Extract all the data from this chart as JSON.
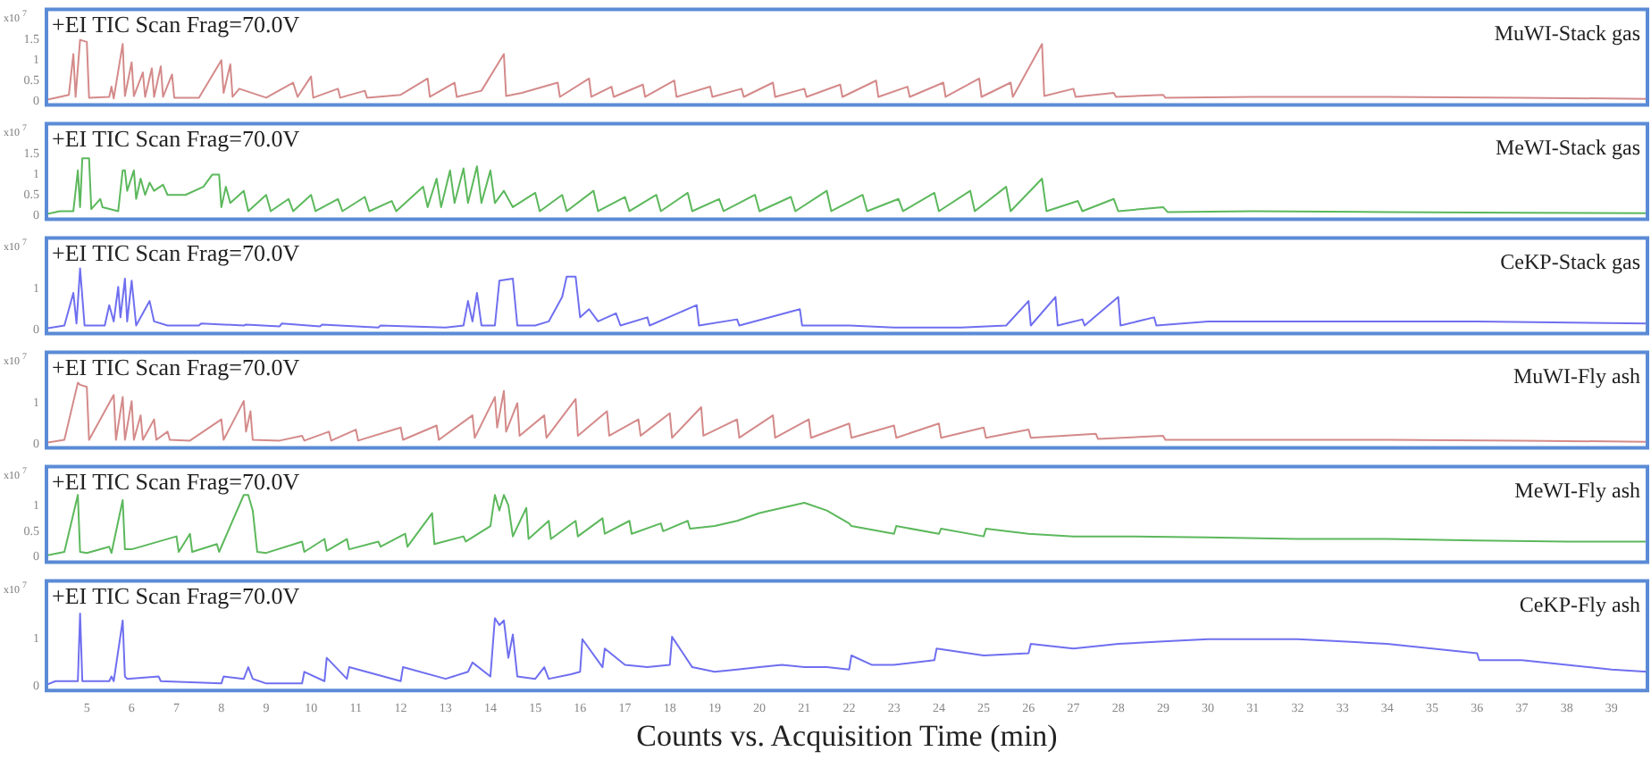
{
  "chart_data": [
    {
      "type": "line",
      "ylabel": "x10$^{7}$",
      "annotations": [
        "+EI TIC Scan Frag=70.0V"
      ],
      "xlim": [
        4.1,
        39.8
      ],
      "ylim": [
        -0.1,
        2.25
      ],
      "yticks": [
        0,
        0.5,
        1,
        1.5
      ],
      "tick_labels": "y",
      "legend": false,
      "grid": false,
      "marker": "none",
      "line_style": "solid",
      "series": [
        {
          "name": "MuWI-Stack gas",
          "color": "#d48a8a",
          "x": [
            4.1,
            4.4,
            4.6,
            4.7,
            4.75,
            4.85,
            5.0,
            5.05,
            5.5,
            5.55,
            5.6,
            5.8,
            5.85,
            6.0,
            6.05,
            6.25,
            6.3,
            6.45,
            6.5,
            6.65,
            6.7,
            6.9,
            6.95,
            7.5,
            8.0,
            8.05,
            8.2,
            8.25,
            8.4,
            9.0,
            9.6,
            9.7,
            10.0,
            10.05,
            10.6,
            10.65,
            11.2,
            11.25,
            12.0,
            12.6,
            12.65,
            13.2,
            13.25,
            13.8,
            14.3,
            14.35,
            14.7,
            15.5,
            15.55,
            16.2,
            16.25,
            16.7,
            16.75,
            17.4,
            17.45,
            18.1,
            18.15,
            18.9,
            18.95,
            19.6,
            19.65,
            20.3,
            20.35,
            21.0,
            21.05,
            21.8,
            21.85,
            22.6,
            22.65,
            23.3,
            23.35,
            24.1,
            24.15,
            24.9,
            24.95,
            25.6,
            25.65,
            26.3,
            26.35,
            27.0,
            27.05,
            27.9,
            27.95,
            29.0,
            29.05,
            31.0,
            34.0,
            37.0,
            39.8
          ],
          "values": [
            0.03,
            0.1,
            0.15,
            1.15,
            0.1,
            1.5,
            1.45,
            0.08,
            0.1,
            0.35,
            0.06,
            1.4,
            0.12,
            0.95,
            0.12,
            0.7,
            0.1,
            0.8,
            0.1,
            0.85,
            0.1,
            0.65,
            0.08,
            0.08,
            1.0,
            0.2,
            0.9,
            0.1,
            0.3,
            0.08,
            0.45,
            0.1,
            0.6,
            0.08,
            0.3,
            0.08,
            0.25,
            0.08,
            0.15,
            0.55,
            0.1,
            0.45,
            0.1,
            0.25,
            1.15,
            0.12,
            0.2,
            0.45,
            0.1,
            0.55,
            0.1,
            0.35,
            0.1,
            0.4,
            0.1,
            0.5,
            0.1,
            0.35,
            0.1,
            0.3,
            0.1,
            0.45,
            0.1,
            0.3,
            0.1,
            0.4,
            0.1,
            0.5,
            0.1,
            0.35,
            0.1,
            0.45,
            0.1,
            0.55,
            0.1,
            0.45,
            0.1,
            1.4,
            0.12,
            0.3,
            0.1,
            0.2,
            0.1,
            0.15,
            0.08,
            0.1,
            0.1,
            0.08,
            0.05
          ]
        }
      ]
    },
    {
      "type": "line",
      "ylabel": "x10$^{7}$",
      "annotations": [
        "+EI TIC Scan Frag=70.0V"
      ],
      "xlim": [
        4.1,
        39.8
      ],
      "ylim": [
        -0.1,
        2.25
      ],
      "yticks": [
        0,
        0.5,
        1,
        1.5
      ],
      "tick_labels": "y",
      "legend": false,
      "grid": false,
      "marker": "none",
      "line_style": "solid",
      "series": [
        {
          "name": "MeWI-Stack gas",
          "color": "#5cb85c",
          "x": [
            4.1,
            4.4,
            4.7,
            4.8,
            4.85,
            4.9,
            5.05,
            5.1,
            5.3,
            5.35,
            5.7,
            5.8,
            5.85,
            5.9,
            6.05,
            6.1,
            6.2,
            6.3,
            6.4,
            6.5,
            6.7,
            6.8,
            7.2,
            7.6,
            7.8,
            7.95,
            8.0,
            8.1,
            8.2,
            8.5,
            8.6,
            9.0,
            9.1,
            9.5,
            9.6,
            10.0,
            10.1,
            10.6,
            10.7,
            11.2,
            11.3,
            11.8,
            11.9,
            12.5,
            12.6,
            12.8,
            12.9,
            13.1,
            13.2,
            13.4,
            13.5,
            13.7,
            13.8,
            14.0,
            14.1,
            14.3,
            14.5,
            15.0,
            15.1,
            15.6,
            15.7,
            16.3,
            16.4,
            17.0,
            17.1,
            17.7,
            17.8,
            18.4,
            18.5,
            19.1,
            19.2,
            19.9,
            20.0,
            20.7,
            20.8,
            21.5,
            21.6,
            22.3,
            22.4,
            23.1,
            23.2,
            23.9,
            24.0,
            24.7,
            24.8,
            25.5,
            25.6,
            26.3,
            26.4,
            27.1,
            27.2,
            27.9,
            28.0,
            29.0,
            29.1,
            31.0,
            34.0,
            37.0,
            39.8
          ],
          "values": [
            0.03,
            0.1,
            0.1,
            1.1,
            0.2,
            1.4,
            1.4,
            0.15,
            0.4,
            0.2,
            0.1,
            1.1,
            1.1,
            0.6,
            1.1,
            0.4,
            0.9,
            0.5,
            0.8,
            0.6,
            0.75,
            0.5,
            0.5,
            0.7,
            1.0,
            1.0,
            0.2,
            0.7,
            0.3,
            0.6,
            0.1,
            0.5,
            0.1,
            0.4,
            0.1,
            0.5,
            0.1,
            0.4,
            0.1,
            0.45,
            0.1,
            0.35,
            0.1,
            0.7,
            0.2,
            0.9,
            0.2,
            1.1,
            0.3,
            1.15,
            0.3,
            1.2,
            0.3,
            1.1,
            0.3,
            0.6,
            0.2,
            0.55,
            0.1,
            0.5,
            0.1,
            0.6,
            0.1,
            0.45,
            0.1,
            0.5,
            0.1,
            0.55,
            0.1,
            0.4,
            0.1,
            0.5,
            0.1,
            0.45,
            0.1,
            0.6,
            0.1,
            0.5,
            0.1,
            0.4,
            0.1,
            0.55,
            0.1,
            0.6,
            0.1,
            0.7,
            0.1,
            0.9,
            0.1,
            0.35,
            0.1,
            0.4,
            0.1,
            0.2,
            0.08,
            0.1,
            0.08,
            0.06,
            0.05
          ]
        }
      ]
    },
    {
      "type": "line",
      "ylabel": "x10$^{7}$",
      "annotations": [
        "+EI TIC Scan Frag=70.0V"
      ],
      "xlim": [
        4.1,
        39.8
      ],
      "ylim": [
        -0.1,
        2.25
      ],
      "yticks": [
        0,
        1
      ],
      "tick_labels": "y",
      "legend": false,
      "grid": false,
      "marker": "none",
      "line_style": "solid",
      "series": [
        {
          "name": "CeKP-Stack gas",
          "color": "#6f6ff0",
          "x": [
            4.1,
            4.5,
            4.7,
            4.77,
            4.85,
            4.95,
            5.4,
            5.5,
            5.6,
            5.7,
            5.75,
            5.85,
            5.9,
            6.0,
            6.1,
            6.4,
            6.5,
            6.8,
            7.5,
            7.55,
            8.5,
            8.55,
            9.3,
            9.35,
            10.2,
            10.25,
            11.5,
            11.55,
            13.0,
            13.4,
            13.5,
            13.6,
            13.7,
            13.8,
            14.1,
            14.2,
            14.5,
            14.6,
            15.0,
            15.3,
            15.6,
            15.7,
            15.9,
            16.0,
            16.2,
            16.4,
            16.8,
            16.9,
            17.5,
            17.55,
            18.6,
            18.65,
            19.5,
            19.55,
            20.9,
            20.95,
            22.0,
            23.0,
            24.5,
            25.5,
            26.0,
            26.05,
            26.6,
            26.65,
            27.2,
            27.25,
            28.0,
            28.05,
            28.8,
            28.85,
            30.0,
            32.0,
            36.0,
            39.8
          ],
          "values": [
            0.03,
            0.1,
            0.9,
            0.15,
            1.5,
            0.1,
            0.1,
            0.6,
            0.2,
            1.05,
            0.3,
            1.25,
            0.2,
            1.2,
            0.1,
            0.7,
            0.2,
            0.1,
            0.1,
            0.15,
            0.1,
            0.12,
            0.08,
            0.15,
            0.08,
            0.12,
            0.05,
            0.1,
            0.05,
            0.1,
            0.7,
            0.2,
            0.9,
            0.1,
            0.1,
            1.2,
            1.25,
            0.1,
            0.1,
            0.2,
            0.8,
            1.3,
            1.3,
            0.3,
            0.5,
            0.2,
            0.4,
            0.1,
            0.3,
            0.1,
            0.6,
            0.1,
            0.25,
            0.1,
            0.5,
            0.1,
            0.1,
            0.05,
            0.05,
            0.1,
            0.7,
            0.1,
            0.8,
            0.1,
            0.25,
            0.1,
            0.8,
            0.1,
            0.3,
            0.1,
            0.2,
            0.2,
            0.2,
            0.15
          ]
        }
      ]
    },
    {
      "type": "line",
      "ylabel": "x10$^{7}$",
      "annotations": [
        "+EI TIC Scan Frag=70.0V"
      ],
      "xlim": [
        4.1,
        39.8
      ],
      "ylim": [
        -0.1,
        2.25
      ],
      "yticks": [
        0,
        1
      ],
      "tick_labels": "y",
      "legend": false,
      "grid": false,
      "marker": "none",
      "line_style": "solid",
      "series": [
        {
          "name": "MuWI-Fly ash",
          "color": "#d48a8a",
          "x": [
            4.1,
            4.5,
            4.8,
            4.85,
            5.0,
            5.05,
            5.6,
            5.65,
            5.8,
            5.85,
            6.0,
            6.05,
            6.2,
            6.25,
            6.5,
            6.55,
            6.8,
            6.85,
            7.3,
            8.0,
            8.05,
            8.5,
            8.55,
            8.65,
            8.7,
            9.3,
            9.8,
            9.85,
            10.4,
            10.45,
            11.0,
            11.05,
            12.0,
            12.05,
            12.8,
            12.85,
            13.6,
            13.65,
            14.1,
            14.15,
            14.3,
            14.35,
            14.6,
            14.65,
            15.2,
            15.25,
            15.9,
            15.95,
            16.6,
            16.65,
            17.3,
            17.35,
            18.0,
            18.05,
            18.7,
            18.75,
            19.5,
            19.55,
            20.3,
            20.35,
            21.1,
            21.15,
            22.0,
            22.05,
            23.0,
            23.05,
            24.0,
            24.05,
            25.0,
            25.05,
            26.0,
            26.05,
            27.5,
            27.55,
            29.0,
            29.05,
            31.0,
            34.0,
            37.0,
            39.8
          ],
          "values": [
            0.03,
            0.1,
            1.5,
            1.45,
            1.4,
            0.1,
            1.2,
            0.1,
            1.15,
            0.1,
            1.05,
            0.1,
            0.7,
            0.1,
            0.6,
            0.1,
            0.3,
            0.1,
            0.08,
            0.6,
            0.1,
            1.05,
            0.3,
            0.8,
            0.1,
            0.08,
            0.2,
            0.08,
            0.3,
            0.08,
            0.35,
            0.08,
            0.4,
            0.1,
            0.45,
            0.1,
            0.7,
            0.15,
            1.15,
            0.4,
            1.3,
            0.3,
            1.0,
            0.2,
            0.7,
            0.15,
            1.1,
            0.2,
            0.8,
            0.2,
            0.6,
            0.2,
            0.75,
            0.15,
            0.9,
            0.2,
            0.6,
            0.15,
            0.7,
            0.15,
            0.6,
            0.15,
            0.5,
            0.15,
            0.45,
            0.15,
            0.5,
            0.15,
            0.4,
            0.15,
            0.35,
            0.15,
            0.25,
            0.12,
            0.2,
            0.1,
            0.1,
            0.1,
            0.08,
            0.05
          ]
        }
      ]
    },
    {
      "type": "line",
      "ylabel": "x10$^{7}$",
      "annotations": [
        "+EI TIC Scan Frag=70.0V"
      ],
      "xlim": [
        4.1,
        39.8
      ],
      "ylim": [
        -0.1,
        1.75
      ],
      "yticks": [
        0,
        0.5,
        1
      ],
      "tick_labels": "y",
      "legend": false,
      "grid": false,
      "marker": "none",
      "line_style": "solid",
      "series": [
        {
          "name": "MeWI-Fly ash",
          "color": "#5cb85c",
          "x": [
            4.1,
            4.5,
            4.8,
            4.85,
            5.0,
            5.5,
            5.55,
            5.8,
            5.85,
            6.0,
            7.0,
            7.05,
            7.3,
            7.35,
            7.9,
            7.95,
            8.5,
            8.6,
            8.7,
            8.8,
            9.0,
            9.8,
            9.85,
            10.3,
            10.35,
            10.8,
            10.85,
            11.5,
            11.55,
            12.1,
            12.15,
            12.7,
            12.75,
            13.4,
            13.45,
            14.0,
            14.1,
            14.2,
            14.3,
            14.4,
            14.5,
            14.8,
            14.85,
            15.3,
            15.35,
            15.9,
            15.95,
            16.5,
            16.55,
            17.1,
            17.15,
            17.8,
            17.85,
            18.4,
            18.45,
            19.0,
            19.5,
            20.0,
            20.5,
            21.0,
            21.5,
            22.0,
            22.05,
            23.0,
            23.05,
            24.0,
            24.05,
            25.0,
            25.05,
            26.0,
            27.0,
            28.0,
            30.0,
            32.0,
            34.0,
            36.0,
            38.0,
            39.8
          ],
          "values": [
            0.03,
            0.1,
            1.2,
            0.1,
            0.08,
            0.2,
            0.08,
            1.1,
            0.15,
            0.15,
            0.4,
            0.1,
            0.45,
            0.1,
            0.25,
            0.1,
            1.2,
            1.2,
            0.9,
            0.1,
            0.08,
            0.3,
            0.1,
            0.35,
            0.12,
            0.35,
            0.15,
            0.3,
            0.2,
            0.45,
            0.2,
            0.85,
            0.25,
            0.4,
            0.3,
            0.6,
            1.2,
            0.9,
            1.2,
            1.0,
            0.4,
            0.95,
            0.35,
            0.7,
            0.35,
            0.7,
            0.4,
            0.75,
            0.45,
            0.7,
            0.45,
            0.65,
            0.5,
            0.7,
            0.55,
            0.6,
            0.7,
            0.85,
            0.95,
            1.05,
            0.9,
            0.65,
            0.6,
            0.45,
            0.6,
            0.45,
            0.55,
            0.4,
            0.55,
            0.45,
            0.4,
            0.4,
            0.38,
            0.35,
            0.35,
            0.32,
            0.3,
            0.3
          ]
        }
      ]
    },
    {
      "type": "line",
      "ylabel": "x10$^{7}$",
      "xlabel": "Counts vs. Acquisition Time (min)",
      "annotations": [
        "+EI TIC Scan Frag=70.0V"
      ],
      "xlim": [
        4.1,
        39.8
      ],
      "ylim": [
        -0.1,
        2.25
      ],
      "yticks": [
        0,
        1
      ],
      "xticks": [
        5,
        6,
        7,
        8,
        9,
        10,
        11,
        12,
        13,
        14,
        15,
        16,
        17,
        18,
        19,
        20,
        21,
        22,
        23,
        24,
        25,
        26,
        27,
        28,
        29,
        30,
        31,
        32,
        33,
        34,
        35,
        36,
        37,
        38,
        39
      ],
      "legend": false,
      "grid": false,
      "marker": "none",
      "line_style": "solid",
      "series": [
        {
          "name": "CeKP-Fly ash",
          "color": "#6f6ff0",
          "x": [
            4.1,
            4.3,
            4.8,
            4.85,
            4.9,
            5.5,
            5.55,
            5.6,
            5.8,
            5.85,
            5.9,
            6.6,
            6.65,
            8.0,
            8.05,
            8.5,
            8.6,
            8.7,
            9.0,
            9.8,
            9.85,
            10.3,
            10.35,
            10.8,
            10.85,
            12.0,
            12.05,
            13.0,
            13.5,
            13.6,
            14.0,
            14.1,
            14.2,
            14.3,
            14.4,
            14.5,
            14.6,
            15.0,
            15.2,
            15.3,
            15.8,
            16.0,
            16.05,
            16.5,
            16.55,
            17.0,
            17.5,
            18.0,
            18.05,
            18.5,
            19.0,
            19.5,
            20.0,
            20.5,
            21.0,
            21.5,
            22.0,
            22.05,
            22.5,
            23.0,
            23.9,
            23.95,
            25.0,
            26.0,
            26.05,
            27.0,
            28.0,
            29.0,
            30.0,
            31.0,
            32.0,
            33.0,
            34.0,
            35.0,
            36.0,
            36.05,
            37.0,
            38.0,
            39.0,
            39.8
          ],
          "values": [
            0.02,
            0.1,
            0.1,
            1.55,
            0.1,
            0.1,
            0.2,
            0.1,
            1.4,
            0.2,
            0.15,
            0.2,
            0.1,
            0.05,
            0.2,
            0.15,
            0.4,
            0.15,
            0.05,
            0.05,
            0.3,
            0.1,
            0.6,
            0.15,
            0.4,
            0.1,
            0.4,
            0.15,
            0.3,
            0.5,
            0.2,
            1.45,
            1.3,
            1.4,
            0.6,
            1.1,
            0.2,
            0.15,
            0.4,
            0.15,
            0.25,
            0.3,
            1.0,
            0.4,
            0.8,
            0.45,
            0.4,
            0.45,
            1.05,
            0.4,
            0.3,
            0.35,
            0.4,
            0.45,
            0.4,
            0.4,
            0.35,
            0.65,
            0.45,
            0.45,
            0.55,
            0.8,
            0.65,
            0.7,
            0.9,
            0.8,
            0.9,
            0.95,
            1.0,
            1.0,
            1.0,
            0.95,
            0.9,
            0.8,
            0.7,
            0.55,
            0.55,
            0.45,
            0.35,
            0.3
          ]
        }
      ]
    }
  ]
}
